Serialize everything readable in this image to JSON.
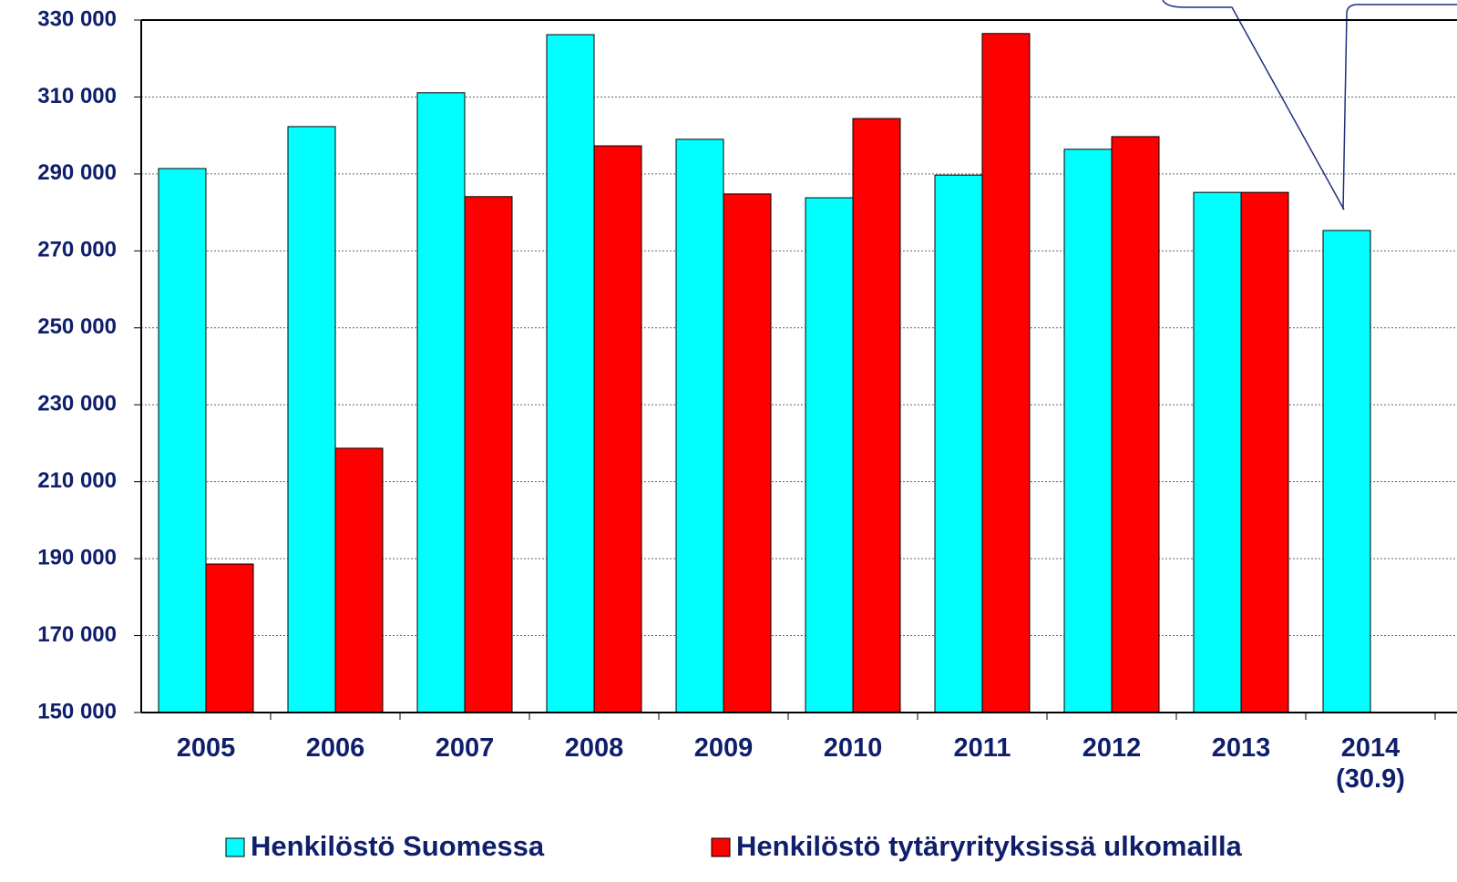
{
  "chart_data": {
    "type": "bar",
    "categories": [
      "2005",
      "2006",
      "2007",
      "2008",
      "2009",
      "2010",
      "2011",
      "2012",
      "2013",
      "2014\n(30.9)"
    ],
    "series": [
      {
        "name": "Henkilöstö Suomessa",
        "color": "#00ffff",
        "values": [
          291400,
          302300,
          311100,
          326200,
          299000,
          283800,
          289700,
          296400,
          285200,
          275300
        ]
      },
      {
        "name": "Henkilöstö tytäryrityksissä ulkomailla",
        "color": "#ff0000",
        "values": [
          188600,
          218700,
          284100,
          297300,
          284800,
          304400,
          326500,
          299700,
          285200,
          null
        ]
      }
    ],
    "ylim": [
      150000,
      330000
    ],
    "yticks": [
      {
        "value": 150000,
        "label": "150 000"
      },
      {
        "value": 170000,
        "label": "170 000"
      },
      {
        "value": 190000,
        "label": "190 000"
      },
      {
        "value": 210000,
        "label": "210 000"
      },
      {
        "value": 230000,
        "label": "230 000"
      },
      {
        "value": 250000,
        "label": "250 000"
      },
      {
        "value": 270000,
        "label": "270 000"
      },
      {
        "value": 290000,
        "label": "290 000"
      },
      {
        "value": 310000,
        "label": "310 000"
      },
      {
        "value": 330000,
        "label": "330 000"
      }
    ],
    "grid": true,
    "legend": "bottom"
  }
}
